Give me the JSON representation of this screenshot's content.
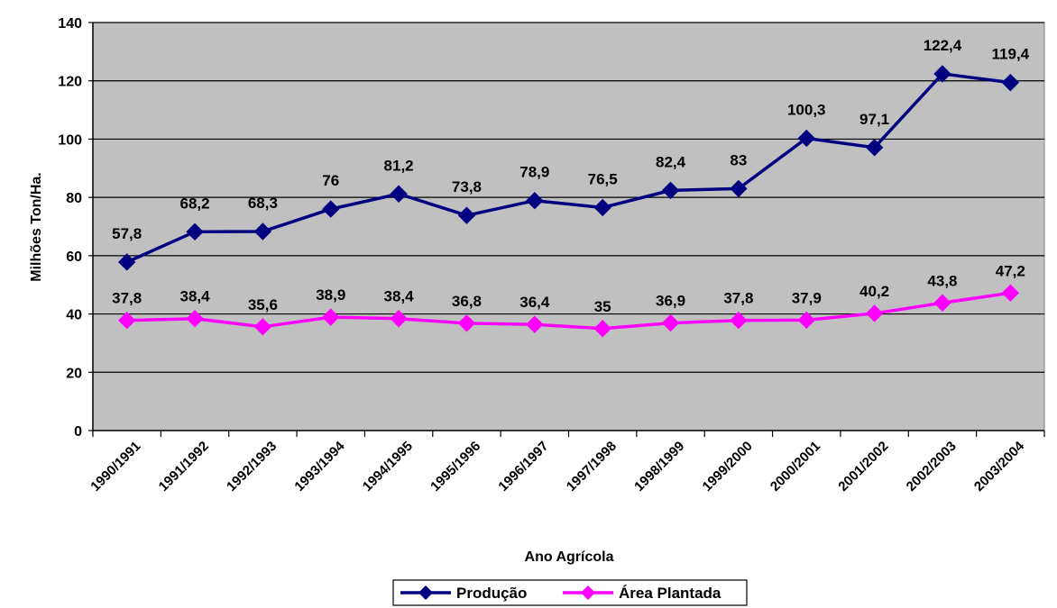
{
  "chart_data": {
    "type": "line",
    "title": "",
    "xlabel": "Ano Agrícola",
    "ylabel": "Milhões Ton/Ha.",
    "ylim": [
      0,
      140
    ],
    "yticks": [
      0,
      20,
      40,
      60,
      80,
      100,
      120,
      140
    ],
    "grid": true,
    "legend_position": "bottom",
    "plot_background": "#C0C0C0",
    "categories": [
      "1990/1991",
      "1991/1992",
      "1992/1993",
      "1993/1994",
      "1994/1995",
      "1995/1996",
      "1996/1997",
      "1997/1998",
      "1998/1999",
      "1999/2000",
      "2000/2001",
      "2001/2002",
      "2002/2003",
      "2003/2004"
    ],
    "series": [
      {
        "name": "Produção",
        "color": "#000080",
        "marker": "diamond",
        "values": [
          57.8,
          68.2,
          68.3,
          76,
          81.2,
          73.8,
          78.9,
          76.5,
          82.4,
          83,
          100.3,
          97.1,
          122.4,
          119.4
        ],
        "labels": [
          "57,8",
          "68,2",
          "68,3",
          "76",
          "81,2",
          "73,8",
          "78,9",
          "76,5",
          "82,4",
          "83",
          "100,3",
          "97,1",
          "122,4",
          "119,4"
        ]
      },
      {
        "name": "Área Plantada",
        "color": "#FF00FF",
        "marker": "diamond",
        "values": [
          37.8,
          38.4,
          35.6,
          38.9,
          38.4,
          36.8,
          36.4,
          35,
          36.9,
          37.8,
          37.9,
          40.2,
          43.8,
          47.2
        ],
        "labels": [
          "37,8",
          "38,4",
          "35,6",
          "38,9",
          "38,4",
          "36,8",
          "36,4",
          "35",
          "36,9",
          "37,8",
          "37,9",
          "40,2",
          "43,8",
          "47,2"
        ]
      }
    ]
  }
}
